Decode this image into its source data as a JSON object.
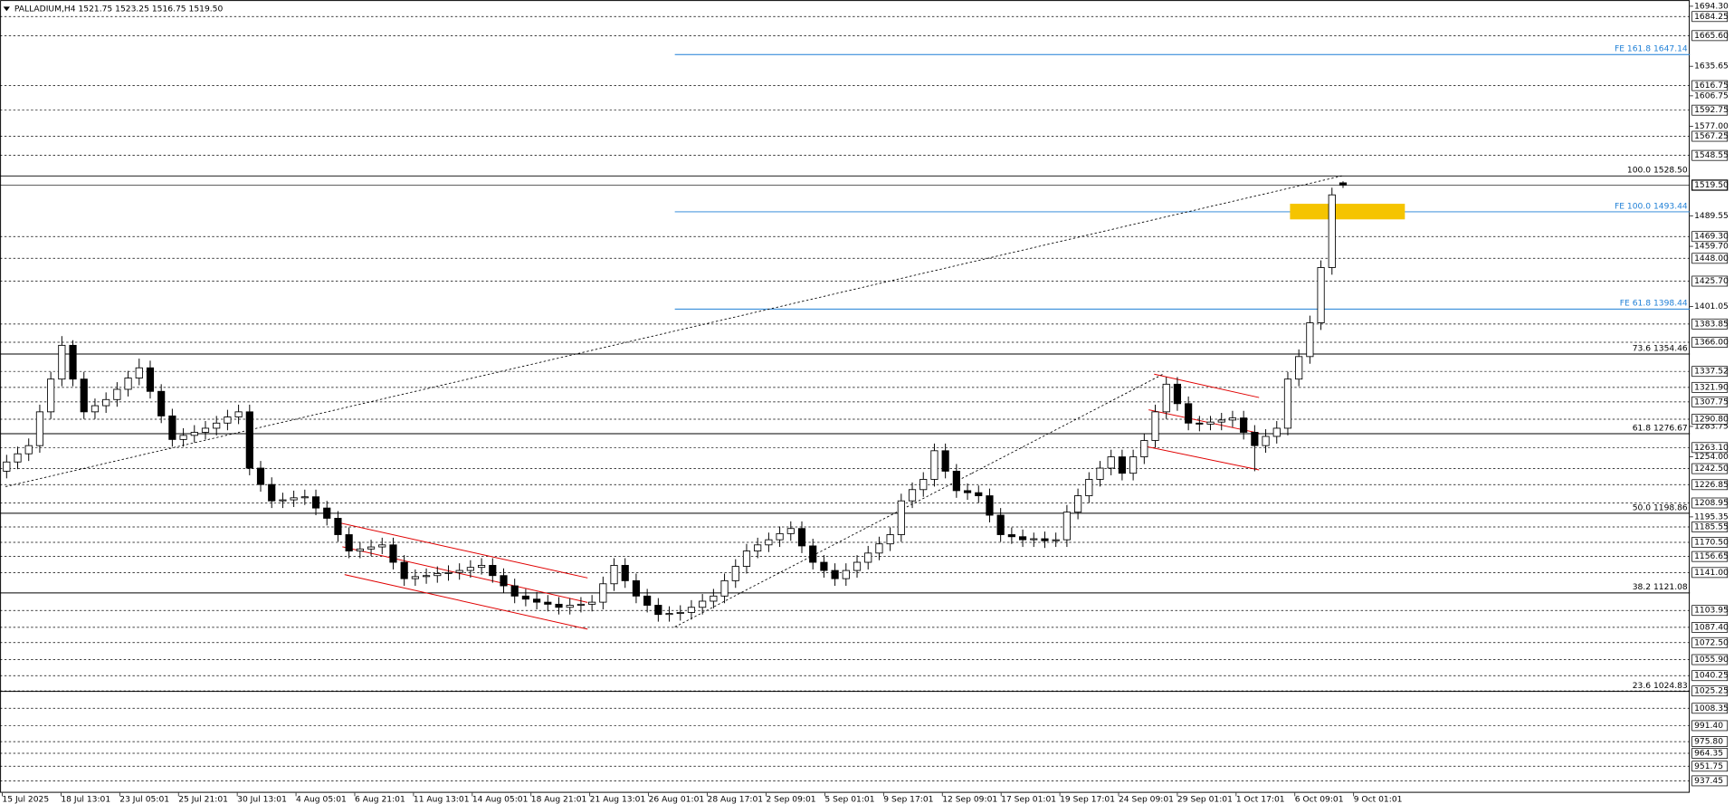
{
  "chart_data": {
    "type": "candlestick",
    "header": "PALLADIUM,H4  1521.75 1523.25 1516.75 1519.50",
    "ylim": [
      925.7,
      1700.4
    ],
    "yticks": [
      {
        "value": 1694.3,
        "label": "1694.30"
      },
      1635.65,
      1606.75,
      {
        "value": 1577,
        "label": "1577.00"
      },
      1489.55,
      {
        "value": 1459.7,
        "label": "1459.70"
      },
      1401.05,
      1283.75,
      {
        "value": 1254,
        "label": "1254.00"
      },
      1195.35
    ],
    "levels": [
      1684.25,
      {
        "value": 1665.6,
        "label": "1665.60"
      },
      1616.75,
      1592.75,
      1567.25,
      1548.55,
      {
        "value": 1469.3,
        "label": "1469.30"
      },
      {
        "value": 1448,
        "label": "1448.00"
      },
      {
        "value": 1425.7,
        "label": "1425.70"
      },
      1383.85,
      {
        "value": 1366,
        "label": "1366.00"
      },
      1337.52,
      {
        "value": 1321.9,
        "label": "1321.90"
      },
      1307.75,
      {
        "value": 1290.8,
        "label": "1290.80"
      },
      {
        "value": 1263.1,
        "label": "1263.10"
      },
      {
        "value": 1242.5,
        "label": "1242.50"
      },
      1226.85,
      1208.95,
      1185.55,
      {
        "value": 1170.5,
        "label": "1170.50"
      },
      1156.65,
      {
        "value": 1141,
        "label": "1141.00"
      },
      1103.95,
      {
        "value": 1087.4,
        "label": "1087.40"
      },
      {
        "value": 1072.5,
        "label": "1072.50"
      },
      {
        "value": 1055.9,
        "label": "1055.90"
      },
      1040.25,
      1025.25,
      1008.35,
      {
        "value": 991.4,
        "label": "991.40"
      },
      {
        "value": 975.8,
        "label": "975.80"
      },
      964.35,
      951.75,
      937.45
    ],
    "last_price": {
      "value": 1519.5,
      "label": "1519.50"
    },
    "fib_levels": [
      {
        "label": "100.0 1528.50",
        "value": 1528.5
      },
      {
        "label": "73.6 1354.46",
        "value": 1354.46
      },
      {
        "label": "61.8 1276.67",
        "value": 1276.67
      },
      {
        "label": "50.0 1198.86",
        "value": 1198.86
      },
      {
        "label": "38.2 1121.08",
        "value": 1121.08
      },
      {
        "label": "23.6 1024.83",
        "value": 1024.83
      }
    ],
    "fe_levels": [
      {
        "label": "FE 161.8 1647.14",
        "value": 1647.14
      },
      {
        "label": "FE 100.0 1493.44",
        "value": 1493.44
      },
      {
        "label": "FE 61.8 1398.44",
        "value": 1398.44
      }
    ],
    "x_labels": [
      "15 Jul 2025",
      "18 Jul 13:01",
      "23 Jul 05:01",
      "25 Jul 21:01",
      "30 Jul 13:01",
      "4 Aug 05:01",
      "6 Aug 21:01",
      "11 Aug 13:01",
      "14 Aug 05:01",
      "18 Aug 21:01",
      "21 Aug 13:01",
      "26 Aug 01:01",
      "28 Aug 17:01",
      "2 Sep 09:01",
      "5 Sep 01:01",
      "9 Sep 17:01",
      "12 Sep 09:01",
      "17 Sep 01:01",
      "19 Sep 17:01",
      "24 Sep 09:01",
      "29 Sep 01:01",
      "1 Oct 17:01",
      "6 Oct 09:01",
      "9 Oct 01:01"
    ],
    "candles": [
      [
        1240,
        1256,
        1233,
        1249
      ],
      [
        1249,
        1264,
        1242,
        1257
      ],
      [
        1257,
        1272,
        1250,
        1265
      ],
      [
        1265,
        1305,
        1258,
        1298
      ],
      [
        1298,
        1337,
        1291,
        1330
      ],
      [
        1330,
        1372,
        1323,
        1363
      ],
      [
        1363,
        1368,
        1323,
        1330
      ],
      [
        1330,
        1337,
        1291,
        1298
      ],
      [
        1298,
        1311,
        1291,
        1304
      ],
      [
        1304,
        1317,
        1297,
        1310
      ],
      [
        1310,
        1327,
        1303,
        1320
      ],
      [
        1320,
        1338,
        1313,
        1331
      ],
      [
        1331,
        1350,
        1324,
        1341
      ],
      [
        1341,
        1348,
        1311,
        1318
      ],
      [
        1318,
        1325,
        1287,
        1294
      ],
      [
        1294,
        1301,
        1264,
        1271
      ],
      [
        1271,
        1282,
        1264,
        1275
      ],
      [
        1275,
        1285,
        1268,
        1278
      ],
      [
        1278,
        1289,
        1271,
        1282
      ],
      [
        1282,
        1294,
        1275,
        1287
      ],
      [
        1287,
        1300,
        1280,
        1293
      ],
      [
        1293,
        1305,
        1286,
        1298
      ],
      [
        1298,
        1305,
        1236,
        1243
      ],
      [
        1243,
        1250,
        1220,
        1227
      ],
      [
        1227,
        1234,
        1204,
        1211
      ],
      [
        1211,
        1219,
        1204,
        1212
      ],
      [
        1212,
        1221,
        1205,
        1214
      ],
      [
        1214,
        1222,
        1207,
        1215
      ],
      [
        1215,
        1222,
        1197,
        1204
      ],
      [
        1204,
        1211,
        1187,
        1194
      ],
      [
        1194,
        1201,
        1171,
        1178
      ],
      [
        1178,
        1185,
        1155,
        1162
      ],
      [
        1162,
        1171,
        1155,
        1164
      ],
      [
        1164,
        1173,
        1157,
        1166
      ],
      [
        1166,
        1175,
        1159,
        1168
      ],
      [
        1168,
        1175,
        1144,
        1151
      ],
      [
        1151,
        1158,
        1128,
        1135
      ],
      [
        1135,
        1144,
        1128,
        1137
      ],
      [
        1137,
        1145,
        1130,
        1138
      ],
      [
        1138,
        1147,
        1131,
        1140
      ],
      [
        1140,
        1148,
        1133,
        1141
      ],
      [
        1141,
        1150,
        1134,
        1143
      ],
      [
        1143,
        1153,
        1136,
        1146
      ],
      [
        1146,
        1155,
        1139,
        1148
      ],
      [
        1148,
        1155,
        1131,
        1138
      ],
      [
        1138,
        1145,
        1121,
        1128
      ],
      [
        1128,
        1135,
        1111,
        1118
      ],
      [
        1118,
        1125,
        1108,
        1115
      ],
      [
        1115,
        1122,
        1105,
        1112
      ],
      [
        1112,
        1119,
        1103,
        1110
      ],
      [
        1110,
        1117,
        1100,
        1107
      ],
      [
        1107,
        1116,
        1100,
        1109
      ],
      [
        1109,
        1117,
        1102,
        1110
      ],
      [
        1110,
        1119,
        1103,
        1112
      ],
      [
        1112,
        1137,
        1105,
        1130
      ],
      [
        1130,
        1155,
        1123,
        1148
      ],
      [
        1148,
        1155,
        1126,
        1133
      ],
      [
        1133,
        1140,
        1111,
        1118
      ],
      [
        1118,
        1125,
        1102,
        1109
      ],
      [
        1109,
        1116,
        1093,
        1100
      ],
      [
        1100,
        1108,
        1093,
        1101
      ],
      [
        1101,
        1109,
        1094,
        1102
      ],
      [
        1102,
        1114,
        1095,
        1107
      ],
      [
        1107,
        1120,
        1100,
        1113
      ],
      [
        1113,
        1125,
        1106,
        1118
      ],
      [
        1118,
        1140,
        1111,
        1133
      ],
      [
        1133,
        1154,
        1126,
        1147
      ],
      [
        1147,
        1169,
        1140,
        1162
      ],
      [
        1162,
        1175,
        1155,
        1168
      ],
      [
        1168,
        1180,
        1161,
        1173
      ],
      [
        1173,
        1186,
        1166,
        1179
      ],
      [
        1179,
        1191,
        1172,
        1184
      ],
      [
        1184,
        1191,
        1160,
        1167
      ],
      [
        1167,
        1174,
        1144,
        1151
      ],
      [
        1151,
        1158,
        1136,
        1143
      ],
      [
        1143,
        1150,
        1128,
        1135
      ],
      [
        1135,
        1150,
        1128,
        1143
      ],
      [
        1143,
        1158,
        1136,
        1151
      ],
      [
        1151,
        1167,
        1144,
        1160
      ],
      [
        1160,
        1176,
        1153,
        1169
      ],
      [
        1169,
        1185,
        1162,
        1178
      ],
      [
        1178,
        1218,
        1171,
        1211
      ],
      [
        1211,
        1229,
        1204,
        1222
      ],
      [
        1222,
        1239,
        1215,
        1232
      ],
      [
        1232,
        1267,
        1225,
        1260
      ],
      [
        1260,
        1267,
        1233,
        1240
      ],
      [
        1240,
        1247,
        1214,
        1221
      ],
      [
        1221,
        1228,
        1212,
        1219
      ],
      [
        1219,
        1226,
        1209,
        1216
      ],
      [
        1216,
        1223,
        1190,
        1197
      ],
      [
        1197,
        1204,
        1171,
        1178
      ],
      [
        1178,
        1185,
        1169,
        1176
      ],
      [
        1176,
        1183,
        1166,
        1173
      ],
      [
        1173,
        1180,
        1166,
        1174
      ],
      [
        1174,
        1181,
        1165,
        1172
      ],
      [
        1172,
        1180,
        1166,
        1173
      ],
      [
        1173,
        1207,
        1166,
        1200
      ],
      [
        1200,
        1223,
        1193,
        1216
      ],
      [
        1216,
        1239,
        1209,
        1232
      ],
      [
        1232,
        1250,
        1225,
        1243
      ],
      [
        1243,
        1261,
        1236,
        1254
      ],
      [
        1254,
        1261,
        1231,
        1238
      ],
      [
        1238,
        1261,
        1231,
        1254
      ],
      [
        1254,
        1277,
        1247,
        1270
      ],
      [
        1270,
        1305,
        1263,
        1298
      ],
      [
        1298,
        1332,
        1291,
        1325
      ],
      [
        1325,
        1332,
        1299,
        1306
      ],
      [
        1306,
        1313,
        1280,
        1287
      ],
      [
        1287,
        1294,
        1279,
        1286
      ],
      [
        1286,
        1294,
        1280,
        1288
      ],
      [
        1288,
        1297,
        1280,
        1290
      ],
      [
        1290,
        1299,
        1283,
        1292
      ],
      [
        1292,
        1299,
        1271,
        1278
      ],
      [
        1278,
        1285,
        1240,
        1265
      ],
      [
        1265,
        1281,
        1258,
        1274
      ],
      [
        1274,
        1289,
        1267,
        1282
      ],
      [
        1282,
        1337,
        1275,
        1330
      ],
      [
        1330,
        1359,
        1323,
        1352
      ],
      [
        1352,
        1392,
        1345,
        1385
      ],
      [
        1385,
        1446,
        1378,
        1439
      ],
      [
        1439,
        1517,
        1432,
        1510
      ],
      [
        1521.75,
        1523.25,
        1516.75,
        1519.5
      ]
    ]
  }
}
